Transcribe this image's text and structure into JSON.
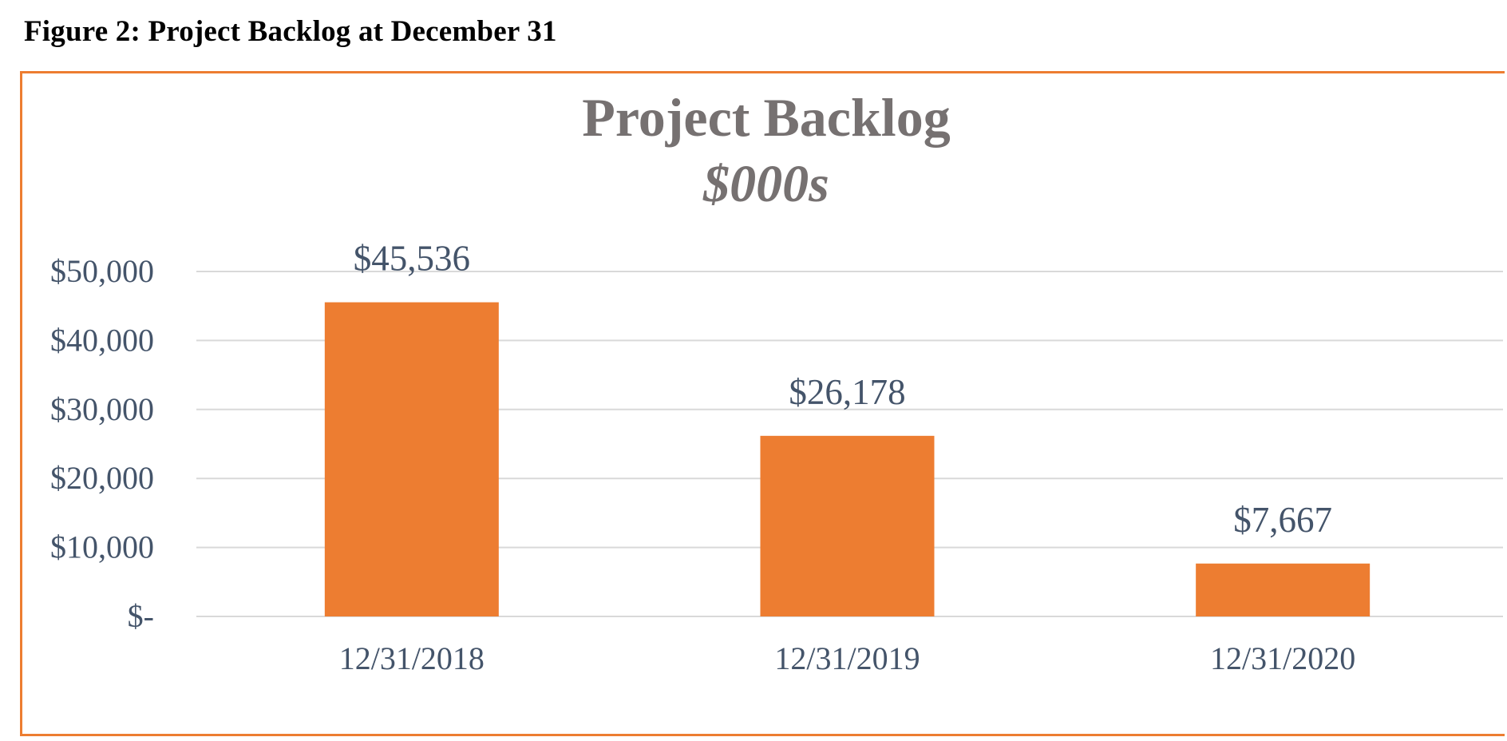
{
  "figure": {
    "caption": "Figure 2:  Project Backlog at December 31"
  },
  "chart_data": {
    "type": "bar",
    "title": "Project Backlog",
    "subtitle": "$000s",
    "categories": [
      "12/31/2018",
      "12/31/2019",
      "12/31/2020"
    ],
    "values": [
      45536,
      26178,
      7667
    ],
    "data_labels": [
      "$45,536",
      "$26,178",
      "$7,667"
    ],
    "ylim": [
      0,
      50000
    ],
    "yticks": [
      0,
      10000,
      20000,
      30000,
      40000,
      50000
    ],
    "ytick_labels": [
      "$-",
      "$10,000",
      "$20,000",
      "$30,000",
      "$40,000",
      "$50,000"
    ],
    "xlabel": "",
    "ylabel": "",
    "grid": true,
    "legend": "none",
    "colors": {
      "bar": "#ed7d31",
      "border": "#ed7d31",
      "grid": "#d9d9d9",
      "title": "#767171",
      "labels": "#44546a"
    }
  }
}
